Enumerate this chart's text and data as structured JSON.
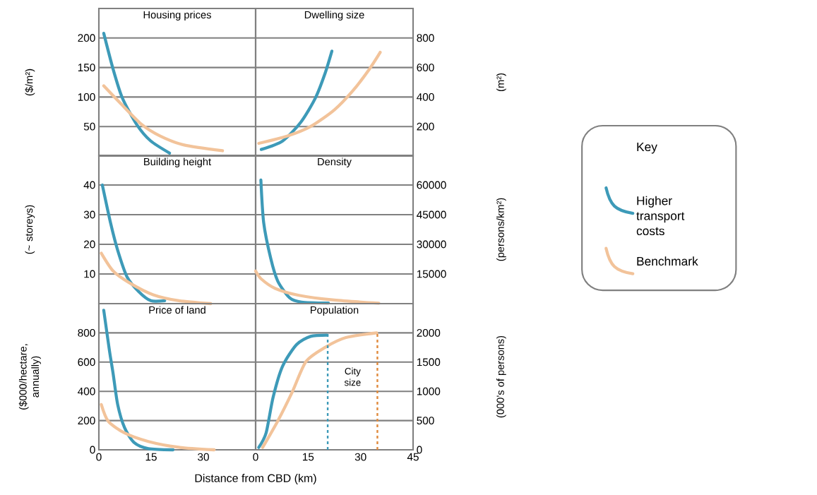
{
  "chart_data": [
    {
      "type": "line",
      "title": "Housing prices",
      "ylabel": "($/m²)",
      "xlim": [
        0,
        45
      ],
      "ylim": [
        0,
        250
      ],
      "yticks": [
        50,
        100,
        150,
        200
      ],
      "grid": "y",
      "tick_labels": "y",
      "legend": "right",
      "legend_title": "Key",
      "series": [
        {
          "name": "Higher transport costs",
          "color": "#3d9ab8",
          "x": [
            1.4,
            4.1,
            6.7,
            10.8,
            14.8,
            20.3
          ],
          "values": [
            208,
            147,
            99,
            54,
            26,
            5
          ]
        },
        {
          "name": "Benchmark",
          "color": "#f2c39a",
          "x": [
            1.4,
            6.1,
            12.2,
            17.6,
            24.3,
            35.5
          ],
          "values": [
            119,
            90,
            54,
            34,
            19,
            9
          ]
        }
      ]
    },
    {
      "type": "line",
      "title": "Dwelling size",
      "ylabel": "(m²)",
      "xlim": [
        0,
        45
      ],
      "ylim": [
        0,
        1000
      ],
      "yticks": [
        200,
        400,
        600,
        800
      ],
      "grid": "y",
      "tick_labels": "y",
      "series": [
        {
          "color": "#3d9ab8",
          "x": [
            1.6,
            7.7,
            13.0,
            17.1,
            19.8,
            21.8
          ],
          "values": [
            45,
            102,
            232,
            394,
            557,
            711
          ]
        },
        {
          "color": "#f2c39a",
          "x": [
            0.9,
            9.0,
            15.7,
            22.5,
            27.8,
            32.5,
            35.6
          ],
          "values": [
            86,
            135,
            200,
            313,
            443,
            589,
            703
          ]
        }
      ]
    },
    {
      "type": "line",
      "title": "Building height",
      "ylabel": "(~ storeys)",
      "xlim": [
        0,
        45
      ],
      "ylim": [
        0,
        50
      ],
      "yticks": [
        10,
        20,
        30,
        40
      ],
      "grid": "y",
      "tick_labels": "y",
      "series": [
        {
          "color": "#3d9ab8",
          "x": [
            1.0,
            3.4,
            5.4,
            8.1,
            11.5,
            14.9,
            18.9
          ],
          "values": [
            40,
            27,
            18,
            9,
            4,
            1,
            1
          ]
        },
        {
          "color": "#f2c39a",
          "x": [
            0.7,
            4.1,
            8.8,
            15.6,
            23.0,
            32.1
          ],
          "values": [
            17,
            11,
            7,
            3,
            1,
            0
          ]
        }
      ]
    },
    {
      "type": "line",
      "title": "Density",
      "ylabel": "(persons/km²)",
      "xlim": [
        0,
        45
      ],
      "ylim": [
        0,
        75000
      ],
      "yticks": [
        15000,
        30000,
        45000,
        60000
      ],
      "grid": "y",
      "tick_labels": "y",
      "series": [
        {
          "color": "#3d9ab8",
          "x": [
            1.5,
            2.3,
            4.3,
            6.3,
            9.7,
            13.1,
            20.8
          ],
          "values": [
            62500,
            41000,
            23000,
            11500,
            3000,
            800,
            300
          ]
        },
        {
          "color": "#f2c39a",
          "x": [
            0,
            1.6,
            5.6,
            12.4,
            22.5,
            35.2
          ],
          "values": [
            16500,
            12500,
            7700,
            4200,
            1800,
            200
          ]
        }
      ]
    },
    {
      "type": "line",
      "title": "Price of land",
      "ylabel": "($000/hectare, annually)",
      "xlabel": "Distance from CBD (km)",
      "xlim": [
        0,
        45
      ],
      "xticks": [
        0,
        15,
        30
      ],
      "ylim": [
        0,
        1000
      ],
      "yticks": [
        0,
        200,
        400,
        600,
        800
      ],
      "grid": "y",
      "series": [
        {
          "color": "#3d9ab8",
          "x": [
            1.4,
            3.0,
            4.1,
            5.4,
            7.4,
            10.1,
            14.2,
            21.3
          ],
          "values": [
            955,
            685,
            520,
            310,
            150,
            50,
            8,
            0
          ]
        },
        {
          "color": "#f2c39a",
          "x": [
            0.7,
            2.7,
            7.4,
            14.2,
            23.0,
            33.1
          ],
          "values": [
            310,
            195,
            115,
            57,
            17,
            0
          ]
        }
      ]
    },
    {
      "type": "line",
      "title": "Population",
      "ylabel": "(000’s of persons)",
      "xlim": [
        0,
        45
      ],
      "xticks": [
        0,
        15,
        30,
        45
      ],
      "ylim": [
        0,
        2500
      ],
      "yticks": [
        0,
        500,
        1000,
        1500,
        2000
      ],
      "grid": "y",
      "annotations": [
        "City size"
      ],
      "ref_lines": [
        {
          "axis": "x",
          "value": 20.6,
          "color": "#3d9ab8",
          "line_style": "dashed"
        },
        {
          "axis": "x",
          "value": 34.8,
          "color": "#e08a3c",
          "line_style": "dashed"
        }
      ],
      "series": [
        {
          "color": "#3d9ab8",
          "x": [
            0.9,
            3.0,
            5.0,
            7.7,
            11.7,
            15.7,
            20.4
          ],
          "values": [
            40,
            290,
            900,
            1430,
            1800,
            1940,
            1960
          ]
        },
        {
          "color": "#f2c39a",
          "x": [
            2.0,
            6.3,
            10.4,
            14.4,
            19.8,
            25.8,
            34.6
          ],
          "values": [
            40,
            490,
            980,
            1510,
            1750,
            1920,
            2000
          ]
        }
      ]
    }
  ]
}
